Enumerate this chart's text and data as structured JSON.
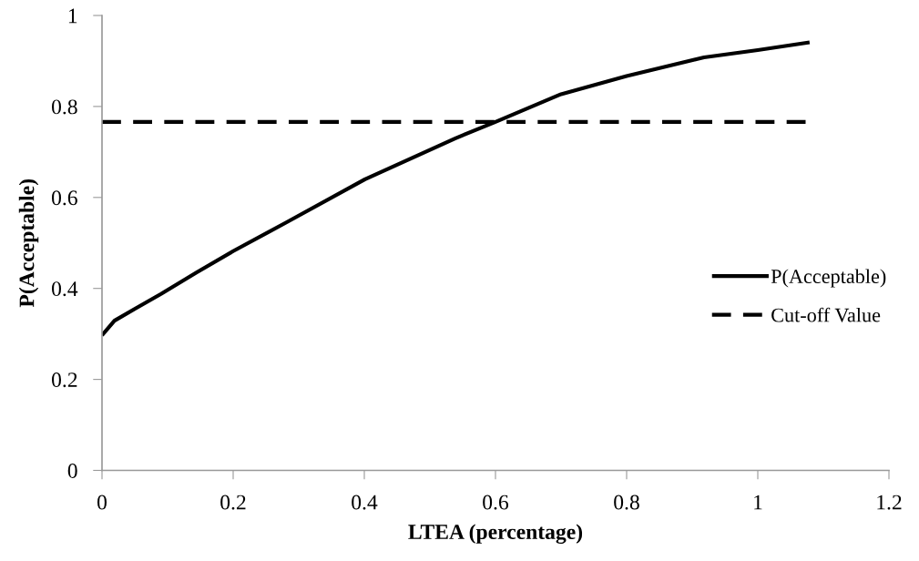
{
  "chart_data": {
    "type": "line",
    "xlabel": "LTEA (percentage)",
    "ylabel": "P(Acceptable)",
    "xlim": [
      0,
      1.2
    ],
    "xticks": [
      0,
      0.2,
      0.4,
      0.6,
      0.8,
      1,
      1.2
    ],
    "ylim": [
      0,
      1
    ],
    "yticks": [
      0,
      0.2,
      0.4,
      0.6,
      0.8,
      1
    ],
    "grid": false,
    "legend": "right",
    "marker": "none",
    "series": [
      {
        "name": "P(Acceptable)",
        "color": "#000000",
        "line_style": "solid",
        "x": [
          0,
          0.019,
          0.051,
          0.09,
          0.144,
          0.2,
          0.281,
          0.401,
          0.539,
          0.6,
          0.7,
          0.8,
          0.918,
          1.0,
          1.079
        ],
        "values": [
          0.297,
          0.329,
          0.356,
          0.388,
          0.435,
          0.482,
          0.545,
          0.64,
          0.73,
          0.766,
          0.827,
          0.867,
          0.908,
          0.924,
          0.941
        ]
      },
      {
        "name": "Cut-off Value",
        "color": "#000000",
        "line_style": "dashed",
        "x": [
          0,
          1.079
        ],
        "values": [
          0.766,
          0.766
        ]
      }
    ]
  }
}
